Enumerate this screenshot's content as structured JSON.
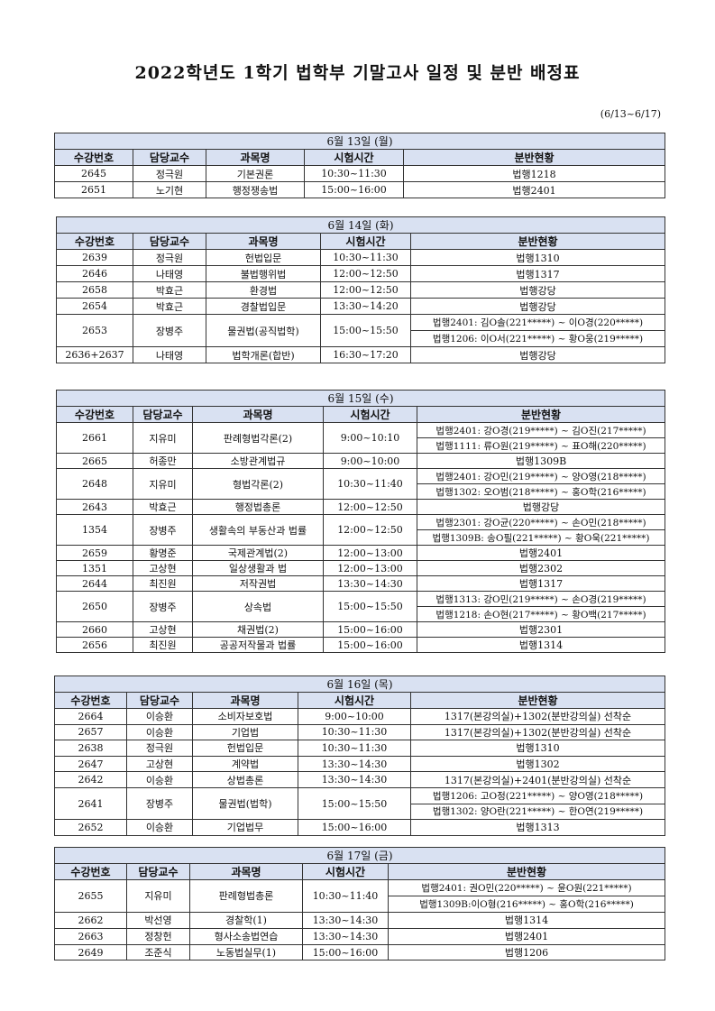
{
  "title": "2022학년도 1학기 법학부 기말고사 일정 및 분반 배정표",
  "date_range": "(6/13~6/17)",
  "columns": [
    "수강번호",
    "담당교수",
    "과목명",
    "시험시간",
    "분반현황"
  ],
  "header_color": "#d9e1f2",
  "days": [
    {
      "label": "6월 13일 (월)",
      "rows": [
        {
          "no": "2645",
          "prof": "정극원",
          "course": "기본권론",
          "time": "10:30~11:30",
          "rooms": [
            "법행1218"
          ]
        },
        {
          "no": "2651",
          "prof": "노기현",
          "course": "행정쟁송법",
          "time": "15:00~16:00",
          "rooms": [
            "법행2401"
          ]
        }
      ]
    },
    {
      "label": "6월 14일 (화)",
      "rows": [
        {
          "no": "2639",
          "prof": "정극원",
          "course": "헌법입문",
          "time": "10:30~11:30",
          "rooms": [
            "법행1310"
          ]
        },
        {
          "no": "2646",
          "prof": "나태영",
          "course": "불법행위법",
          "time": "12:00~12:50",
          "rooms": [
            "법행1317"
          ]
        },
        {
          "no": "2658",
          "prof": "박효근",
          "course": "환경법",
          "time": "12:00~12:50",
          "rooms": [
            "법행강당"
          ]
        },
        {
          "no": "2654",
          "prof": "박효근",
          "course": "경찰법입문",
          "time": "13:30~14:20",
          "rooms": [
            "법행강당"
          ]
        },
        {
          "no": "2653",
          "prof": "장병주",
          "course": "물권법(공직법학)",
          "time": "15:00~15:50",
          "rooms": [
            "법행2401: 김O솔(221*****) ~ 이O경(220*****)",
            "법행1206: 이O서(221*****) ~ 황O웅(219*****)"
          ]
        },
        {
          "no": "2636+2637",
          "prof": "나태영",
          "course": "법학개론(합반)",
          "time": "16:30~17:20",
          "rooms": [
            "법행강당"
          ]
        }
      ]
    },
    {
      "label": "6월 15일 (수)",
      "rows": [
        {
          "no": "2661",
          "prof": "지유미",
          "course": "판례형법각론(2)",
          "time": "9:00~10:10",
          "rooms": [
            "법행2401: 강O경(219*****) ~ 김O진(217*****)",
            "법행1111: 류O원(219*****) ~ 표O해(220*****)"
          ]
        },
        {
          "no": "2665",
          "prof": "허종만",
          "course": "소방관계법규",
          "time": "9:00~10:00",
          "rooms": [
            "법행1309B"
          ]
        },
        {
          "no": "2648",
          "prof": "지유미",
          "course": "형법각론(2)",
          "time": "10:30~11:40",
          "rooms": [
            "법행2401: 강O민(219*****) ~ 양O영(218*****)",
            "법행1302: 오O범(218*****) ~ 홍O학(216*****)"
          ]
        },
        {
          "no": "2643",
          "prof": "박효근",
          "course": "행정법총론",
          "time": "12:00~12:50",
          "rooms": [
            "법행강당"
          ]
        },
        {
          "no": "1354",
          "prof": "장병주",
          "course": "생활속의 부동산과 법률",
          "time": "12:00~12:50",
          "rooms": [
            "법행2301: 강O균(220*****) ~ 손O민(218*****)",
            "법행1309B: 송O필(221*****) ~ 황O욱(221*****)"
          ]
        },
        {
          "no": "2659",
          "prof": "황명준",
          "course": "국제관계법(2)",
          "time": "12:00~13:00",
          "rooms": [
            "법행2401"
          ]
        },
        {
          "no": "1351",
          "prof": "고상현",
          "course": "일상생활과 법",
          "time": "12:00~13:00",
          "rooms": [
            "법행2302"
          ]
        },
        {
          "no": "2644",
          "prof": "최진원",
          "course": "저작권법",
          "time": "13:30~14:30",
          "rooms": [
            "법행1317"
          ]
        },
        {
          "no": "2650",
          "prof": "장병주",
          "course": "상속법",
          "time": "15:00~15:50",
          "rooms": [
            "법행1313: 강O민(219*****) ~ 손O경(219*****)",
            "법행1218: 손O현(217*****) ~ 황O백(217*****)"
          ]
        },
        {
          "no": "2660",
          "prof": "고상현",
          "course": "채권법(2)",
          "time": "15:00~16:00",
          "rooms": [
            "법행2301"
          ]
        },
        {
          "no": "2656",
          "prof": "최진원",
          "course": "공공저작물과 법률",
          "time": "15:00~16:00",
          "rooms": [
            "법행1314"
          ]
        }
      ]
    },
    {
      "label": "6월 16일 (목)",
      "rows": [
        {
          "no": "2664",
          "prof": "이승환",
          "course": "소비자보호법",
          "time": "9:00~10:00",
          "rooms": [
            "1317(본강의실)+1302(분반강의실) 선착순"
          ]
        },
        {
          "no": "2657",
          "prof": "이승환",
          "course": "기업법",
          "time": "10:30~11:30",
          "rooms": [
            "1317(본강의실)+1302(분반강의실) 선착순"
          ]
        },
        {
          "no": "2638",
          "prof": "정극원",
          "course": "헌법입문",
          "time": "10:30~11:30",
          "rooms": [
            "법행1310"
          ]
        },
        {
          "no": "2647",
          "prof": "고상현",
          "course": "계약법",
          "time": "13:30~14:30",
          "rooms": [
            "법행1302"
          ]
        },
        {
          "no": "2642",
          "prof": "이승환",
          "course": "상법총론",
          "time": "13:30~14:30",
          "rooms": [
            "1317(본강의실)+2401(분반강의실) 선착순"
          ]
        },
        {
          "no": "2641",
          "prof": "장병주",
          "course": "물권법(법학)",
          "time": "15:00~15:50",
          "rooms": [
            "법행1206: 고O정(221*****) ~ 양O영(218*****)",
            "법행1302: 양O란(221*****) ~ 한O연(219*****)"
          ]
        },
        {
          "no": "2652",
          "prof": "이승환",
          "course": "기업법무",
          "time": "15:00~16:00",
          "rooms": [
            "법행1313"
          ]
        }
      ]
    },
    {
      "label": "6월 17일 (금)",
      "rows": [
        {
          "no": "2655",
          "prof": "지유미",
          "course": "판례형법총론",
          "time": "10:30~11:40",
          "rooms": [
            "법행2401: 권O민(220*****) ~ 윤O원(221*****)",
            "법행1309B:이O형(216*****) ~ 홍O학(216*****)"
          ]
        },
        {
          "no": "2662",
          "prof": "박선영",
          "course": "경찰학(1)",
          "time": "13:30~14:30",
          "rooms": [
            "법행1314"
          ]
        },
        {
          "no": "2663",
          "prof": "정창헌",
          "course": "형사소송법연습",
          "time": "13:30~14:30",
          "rooms": [
            "법행2401"
          ]
        },
        {
          "no": "2649",
          "prof": "조준식",
          "course": "노동법실무(1)",
          "time": "15:00~16:00",
          "rooms": [
            "법행1206"
          ]
        }
      ]
    }
  ]
}
